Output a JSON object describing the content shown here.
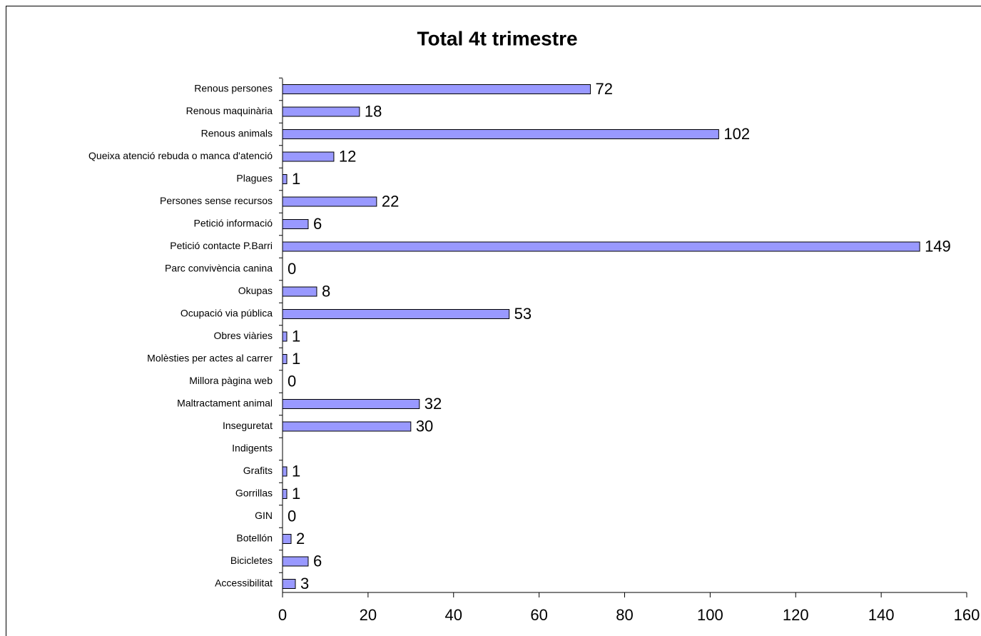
{
  "chart_data": {
    "type": "barh",
    "title": "Total 4t trimestre",
    "categories": [
      "Renous persones",
      "Renous maquinària",
      "Renous animals",
      "Queixa atenció rebuda o manca d'atenció",
      "Plagues",
      "Persones sense recursos",
      "Petició informació",
      "Petició contacte P.Barri",
      "Parc convivència canina",
      "Okupas",
      "Ocupació via pública",
      "Obres viàries",
      "Molèsties per actes al carrer",
      "Millora pàgina web",
      "Maltractament animal",
      "Inseguretat",
      "Indigents",
      "Grafits",
      "Gorrillas",
      "GIN",
      "Botellón",
      "Bicicletes",
      "Accessibilitat"
    ],
    "values": [
      72,
      18,
      102,
      12,
      1,
      22,
      6,
      149,
      0,
      8,
      53,
      1,
      1,
      0,
      32,
      30,
      null,
      1,
      1,
      0,
      2,
      6,
      3
    ],
    "color": "#9999ff",
    "xlim": [
      0,
      160
    ],
    "xticks": [
      0,
      20,
      40,
      60,
      80,
      100,
      120,
      140,
      160
    ]
  }
}
